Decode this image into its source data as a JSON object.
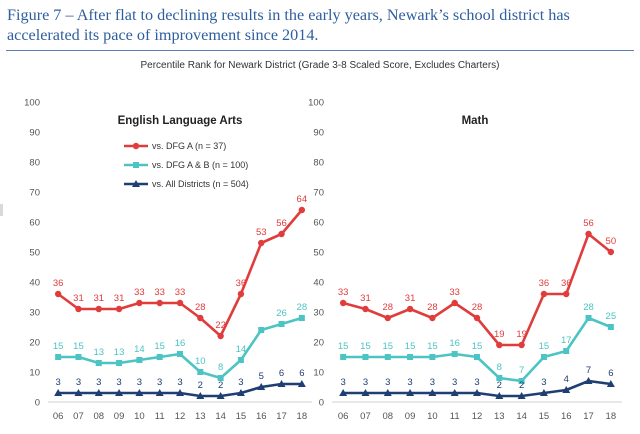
{
  "figure": {
    "title_line1": "Figure 7 – After flat to declining results in the early years, Newark’s school district has",
    "title_line2": "accelerated its pace of improvement since 2014.",
    "subtitle": "Percentile Rank for Newark District (Grade 3-8 Scaled Score, Excludes Charters)"
  },
  "colors": {
    "dfg_a": "#e03c3c",
    "dfg_ab": "#4cc4c4",
    "all_districts": "#1f3f73",
    "axis": "#d0d0d0",
    "tick_text": "#555555"
  },
  "chart_data": [
    {
      "type": "line",
      "title": "English Language Arts",
      "categories": [
        "06",
        "07",
        "08",
        "09",
        "10",
        "11",
        "12",
        "13",
        "14",
        "15",
        "16",
        "17",
        "18"
      ],
      "ylim": [
        0,
        100
      ],
      "yticks": [
        0,
        10,
        20,
        30,
        40,
        50,
        60,
        70,
        80,
        90,
        100
      ],
      "legend_position": "top-left",
      "series": [
        {
          "name": "vs. DFG A (n = 37)",
          "color_key": "dfg_a",
          "marker": "circle",
          "values": [
            36,
            31,
            31,
            31,
            33,
            33,
            33,
            28,
            22,
            36,
            53,
            56,
            64
          ]
        },
        {
          "name": "vs. DFG A & B (n = 100)",
          "color_key": "dfg_ab",
          "marker": "square",
          "values": [
            15,
            15,
            13,
            13,
            14,
            15,
            16,
            10,
            8,
            14,
            24,
            26,
            28
          ],
          "labels": [
            15,
            15,
            13,
            13,
            14,
            15,
            16,
            10,
            8,
            14,
            null,
            26,
            28
          ]
        },
        {
          "name": "vs. All Districts (n = 504)",
          "color_key": "all_districts",
          "marker": "triangle",
          "values": [
            3,
            3,
            3,
            3,
            3,
            3,
            3,
            2,
            2,
            3,
            5,
            6,
            6
          ]
        }
      ]
    },
    {
      "type": "line",
      "title": "Math",
      "categories": [
        "06",
        "07",
        "08",
        "09",
        "10",
        "11",
        "12",
        "13",
        "14",
        "15",
        "16",
        "17",
        "18"
      ],
      "ylim": [
        0,
        100
      ],
      "yticks": [
        0,
        10,
        20,
        30,
        40,
        50,
        60,
        70,
        80,
        90,
        100
      ],
      "series": [
        {
          "name": "vs. DFG A (n = 37)",
          "color_key": "dfg_a",
          "marker": "circle",
          "values": [
            33,
            31,
            28,
            31,
            28,
            33,
            28,
            19,
            19,
            36,
            36,
            56,
            50
          ]
        },
        {
          "name": "vs. DFG A & B (n = 100)",
          "color_key": "dfg_ab",
          "marker": "square",
          "values": [
            15,
            15,
            15,
            15,
            15,
            16,
            15,
            8,
            7,
            15,
            17,
            28,
            25
          ]
        },
        {
          "name": "vs. All Districts (n = 504)",
          "color_key": "all_districts",
          "marker": "triangle",
          "values": [
            3,
            3,
            3,
            3,
            3,
            3,
            3,
            2,
            2,
            3,
            4,
            7,
            6
          ]
        }
      ]
    }
  ]
}
